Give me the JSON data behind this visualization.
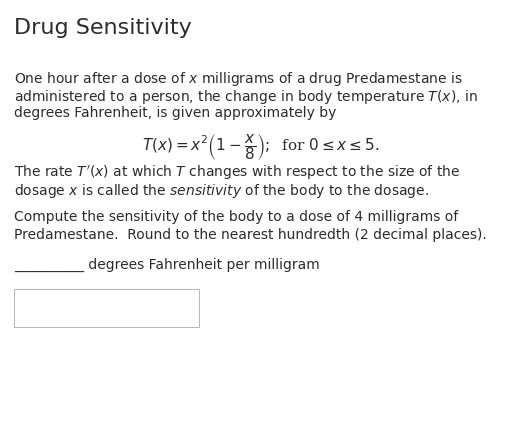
{
  "title": "Drug Sensitivity",
  "title_fontsize": 16,
  "body_fontsize": 10,
  "formula_fontsize": 11,
  "bg_color": "#ffffff",
  "text_color": "#2c2c2c",
  "line1": "One hour after a dose of $x$ milligrams of a drug Predamestane is",
  "line2": "administered to a person, the change in body temperature $T(x)$, in",
  "line3": "degrees Fahrenheit, is given approximately by",
  "formula": "$T(x) = x^2 \\left(1 - \\dfrac{x}{8}\\right);\\;$ for $0 \\leq x \\leq 5.$",
  "line4": "The rate $T'(x)$ at which $T$ changes with respect to the size of the",
  "line5": "dosage $x$ is called the $\\mathit{sensitivity}$ of the body to the dosage.",
  "line6": "Compute the sensitivity of the body to a dose of 4 milligrams of",
  "line7": "Predamestane.  Round to the nearest hundredth (2 decimal places).",
  "blank_label": "__________ degrees Fahrenheit per milligram"
}
